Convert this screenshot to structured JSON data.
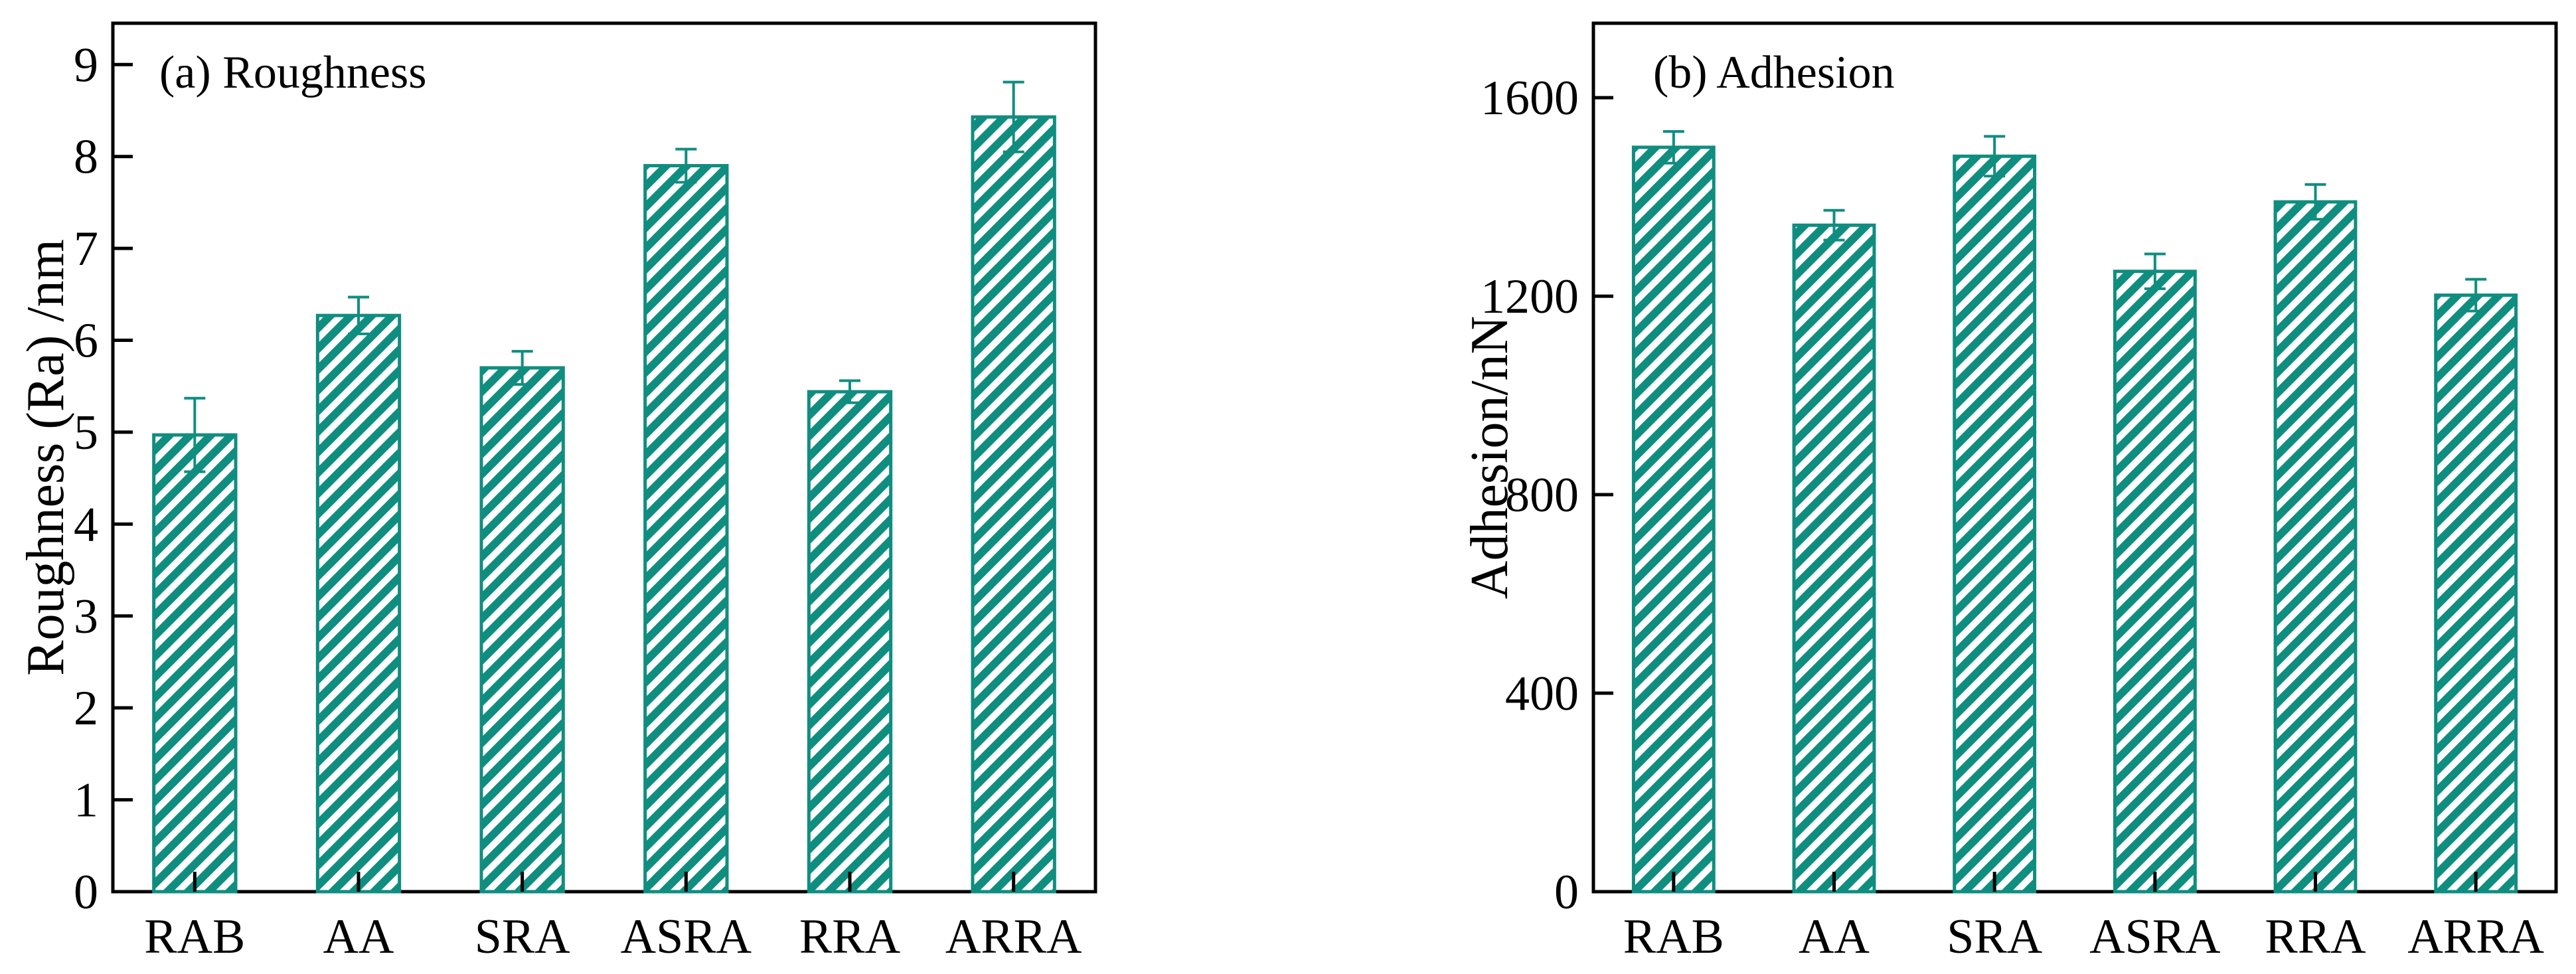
{
  "colors": {
    "bar": "#0f8e80",
    "frame": "#000000",
    "background": "#ffffff"
  },
  "chart_data": [
    {
      "type": "bar",
      "title": "(a) Roughness",
      "xlabel": "",
      "ylabel": "Roughness (Ra) /nm",
      "categories": [
        "RAB",
        "AA",
        "SRA",
        "ASRA",
        "RRA",
        "ARRA"
      ],
      "values": [
        4.97,
        6.27,
        5.7,
        7.9,
        5.44,
        8.43
      ],
      "errors": [
        0.4,
        0.2,
        0.18,
        0.18,
        0.12,
        0.38
      ],
      "ylim": [
        0,
        9.45
      ],
      "yticks": [
        "0",
        "1",
        "2",
        "3",
        "4",
        "5",
        "6",
        "7",
        "8",
        "9"
      ],
      "ytick_values": [
        0,
        1,
        2,
        3,
        4,
        5,
        6,
        7,
        8,
        9
      ],
      "grid": false,
      "legend": "none"
    },
    {
      "type": "bar",
      "title": "(b) Adhesion",
      "xlabel": "",
      "ylabel": "Adhesion/nN",
      "categories": [
        "RAB",
        "AA",
        "SRA",
        "ASRA",
        "RRA",
        "ARRA"
      ],
      "values": [
        1500,
        1343,
        1482,
        1250,
        1390,
        1202
      ],
      "errors": [
        32,
        30,
        40,
        35,
        35,
        32
      ],
      "ylim": [
        0,
        1750
      ],
      "yticks": [
        "0",
        "400",
        "800",
        "1200",
        "1600"
      ],
      "ytick_values": [
        0,
        400,
        800,
        1200,
        1600
      ],
      "grid": false,
      "legend": "none"
    }
  ]
}
